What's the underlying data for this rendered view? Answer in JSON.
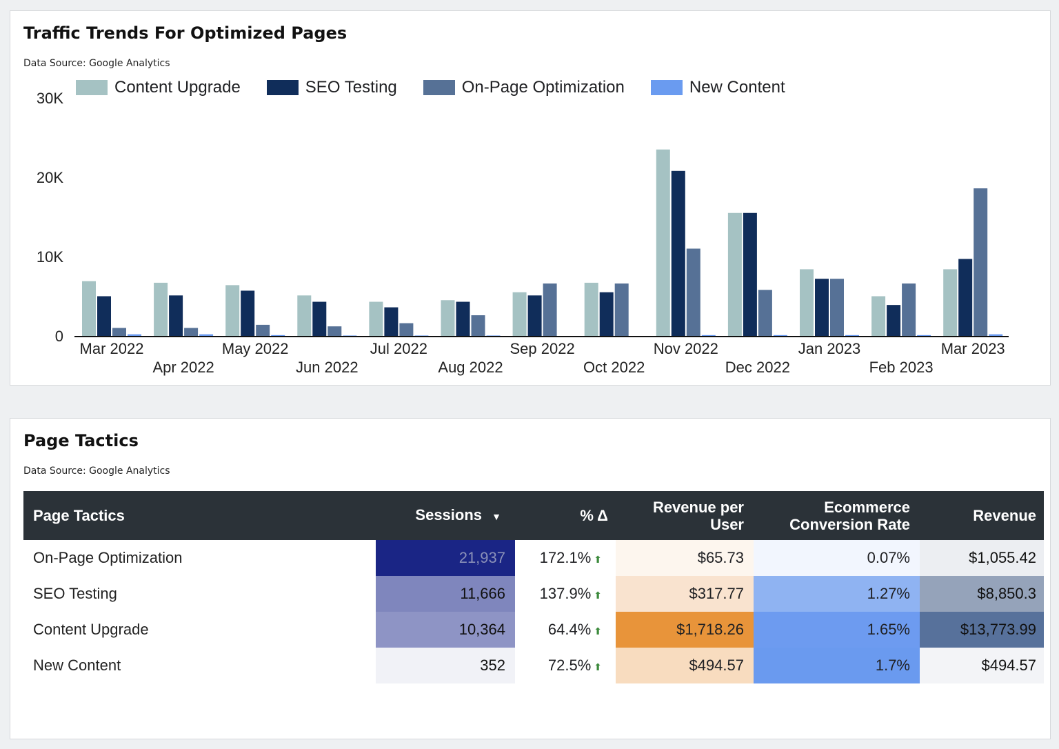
{
  "chart_panel": {
    "title": "Traffic Trends For Optimized Pages",
    "source": "Data Source: Google Analytics"
  },
  "chart_data": {
    "type": "bar",
    "categories": [
      "Mar 2022",
      "Apr 2022",
      "May 2022",
      "Jun 2022",
      "Jul 2022",
      "Aug 2022",
      "Sep 2022",
      "Oct 2022",
      "Nov 2022",
      "Dec 2022",
      "Jan 2023",
      "Feb 2023",
      "Mar 2023"
    ],
    "series": [
      {
        "name": "Content Upgrade",
        "color": "#a5c2c3",
        "values": [
          6900,
          6700,
          6400,
          5100,
          4300,
          4500,
          5500,
          6700,
          23500,
          15500,
          8400,
          5000,
          8400
        ]
      },
      {
        "name": "SEO Testing",
        "color": "#102d5a",
        "values": [
          5000,
          5100,
          5700,
          4300,
          3600,
          4300,
          5100,
          5500,
          20800,
          15500,
          7200,
          3900,
          9700
        ]
      },
      {
        "name": "On-Page Optimization",
        "color": "#567196",
        "values": [
          1000,
          1000,
          1400,
          1200,
          1600,
          2600,
          6600,
          6600,
          11000,
          5800,
          7200,
          6600,
          18600
        ]
      },
      {
        "name": "New Content",
        "color": "#6a9bf0",
        "values": [
          200,
          200,
          100,
          50,
          50,
          50,
          0,
          0,
          100,
          100,
          100,
          100,
          200
        ]
      }
    ],
    "yticks": [
      "0",
      "10K",
      "20K",
      "30K"
    ],
    "ylim": [
      0,
      30000
    ],
    "legend": "top",
    "grid": false
  },
  "table_panel": {
    "title": "Page Tactics",
    "source": "Data Source: Google Analytics",
    "headers": [
      "Page Tactics",
      "Sessions",
      "% Δ",
      "Revenue per User",
      "Ecommerce Conversion Rate",
      "Revenue"
    ],
    "sort_icon": "▼",
    "up_icon": "⬆",
    "rows": [
      {
        "tactic": "On-Page Optimization",
        "sessions": "21,937",
        "delta": "172.1%",
        "rpu": "$65.73",
        "conv": "0.07%",
        "revenue": "$1,055.42"
      },
      {
        "tactic": "SEO Testing",
        "sessions": "11,666",
        "delta": "137.9%",
        "rpu": "$317.77",
        "conv": "1.27%",
        "revenue": "$8,850.3"
      },
      {
        "tactic": "Content Upgrade",
        "sessions": "10,364",
        "delta": "64.4%",
        "rpu": "$1,718.26",
        "conv": "1.65%",
        "revenue": "$13,773.99"
      },
      {
        "tactic": "New Content",
        "sessions": "352",
        "delta": "72.5%",
        "rpu": "$494.57",
        "conv": "1.7%",
        "revenue": "$494.57"
      }
    ]
  }
}
